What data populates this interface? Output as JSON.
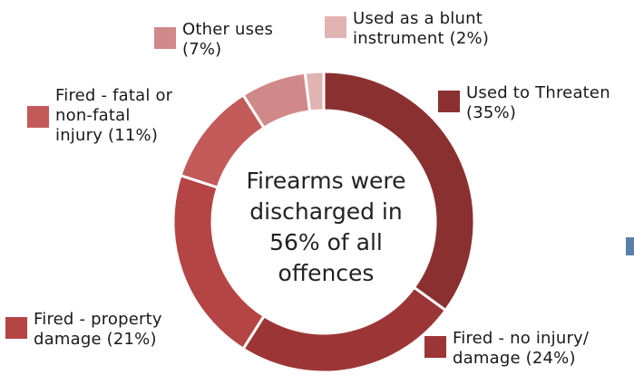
{
  "chart_data": {
    "type": "pie",
    "variant": "donut",
    "start_angle_deg": 0,
    "direction": "clockwise",
    "slices": [
      {
        "label": "Used to Threaten (35%)",
        "value": 35,
        "color": "#8b3030"
      },
      {
        "label": "Fired - no injury/ damage (24%)",
        "value": 24,
        "color": "#9c3636"
      },
      {
        "label": "Fired - property damage (21%)",
        "value": 21,
        "color": "#b54444"
      },
      {
        "label": "Fired - fatal or non-fatal injury (11%)",
        "value": 11,
        "color": "#c35a5a"
      },
      {
        "label": "Other uses (7%)",
        "value": 7,
        "color": "#d18888"
      },
      {
        "label": "Used as a blunt instrument (2%)",
        "value": 2,
        "color": "#e2b3b3"
      }
    ],
    "center_text": "Firearms were discharged in 56% of all offences",
    "center_lines": [
      "Firearms were",
      "discharged in",
      "56% of all",
      "offences"
    ],
    "legend": {
      "threaten": [
        "Used to Threaten",
        "(35%)"
      ],
      "no_injury": [
        "Fired - no injury/",
        "damage (24%)"
      ],
      "property": [
        "Fired - property",
        "damage (21%)"
      ],
      "injury": [
        "Fired - fatal or",
        "non-fatal",
        "injury (11%)"
      ],
      "other": [
        "Other uses",
        "(7%)"
      ],
      "blunt": [
        "Used as a blunt",
        "instrument (2%)"
      ]
    }
  }
}
